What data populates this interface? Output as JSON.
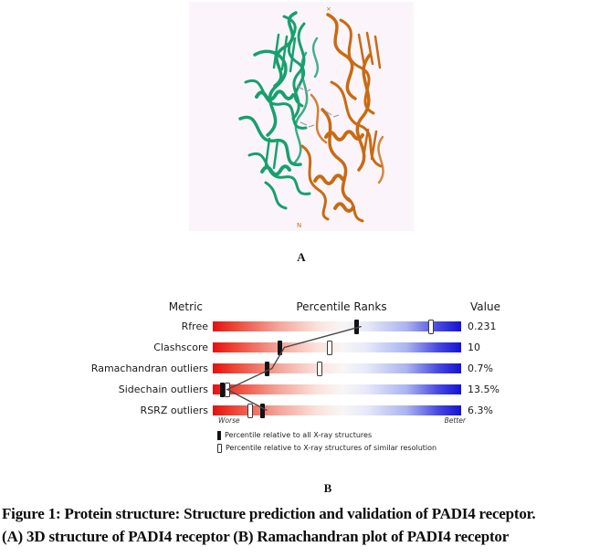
{
  "figure": {
    "panel_a_label": "A",
    "panel_b_label": "B",
    "caption_line1": "Figure 1: Protein structure: Structure prediction and validation of PADI4 receptor.",
    "caption_line2": "(A) 3D structure of PADI4 receptor (B) Ramachandran plot of PADI4 receptor"
  },
  "structure": {
    "chain_a_color": "#17a06e",
    "chain_b_color": "#c96a12",
    "background": "#fbf5fb",
    "ligand_color": "#9a9a9a"
  },
  "chart_data": {
    "type": "bar",
    "title": "Percentile Ranks",
    "headers": {
      "metric": "Metric",
      "percentile": "Percentile Ranks",
      "value": "Value"
    },
    "categories": [
      "Rfree",
      "Clashscore",
      "Ramachandran outliers",
      "Sidechain outliers",
      "RSRZ outliers"
    ],
    "rows": [
      {
        "metric": "Rfree",
        "value": "0.231",
        "percentile_all": 58,
        "percentile_similar": 88
      },
      {
        "metric": "Clashscore",
        "value": "10",
        "percentile_all": 27,
        "percentile_similar": 47
      },
      {
        "metric": "Ramachandran outliers",
        "value": "0.7%",
        "percentile_all": 22,
        "percentile_similar": 43
      },
      {
        "metric": "Sidechain outliers",
        "value": "13.5%",
        "percentile_all": 4,
        "percentile_similar": 6
      },
      {
        "metric": "RSRZ outliers",
        "value": "6.3%",
        "percentile_all": 20,
        "percentile_similar": 15
      }
    ],
    "xlim": [
      0,
      100
    ],
    "axis_worse": "Worse",
    "axis_better": "Better",
    "legend": [
      {
        "marker": "filled",
        "label": "Percentile relative to all X-ray structures"
      },
      {
        "marker": "hollow",
        "label": "Percentile relative to X-ray structures of similar resolution"
      }
    ],
    "colors": {
      "worst": "#e60f0f",
      "best": "#1212d2",
      "marker_all": "#131313",
      "marker_similar_border": "#3a3a3a",
      "connector": "#4a4a4a"
    }
  }
}
